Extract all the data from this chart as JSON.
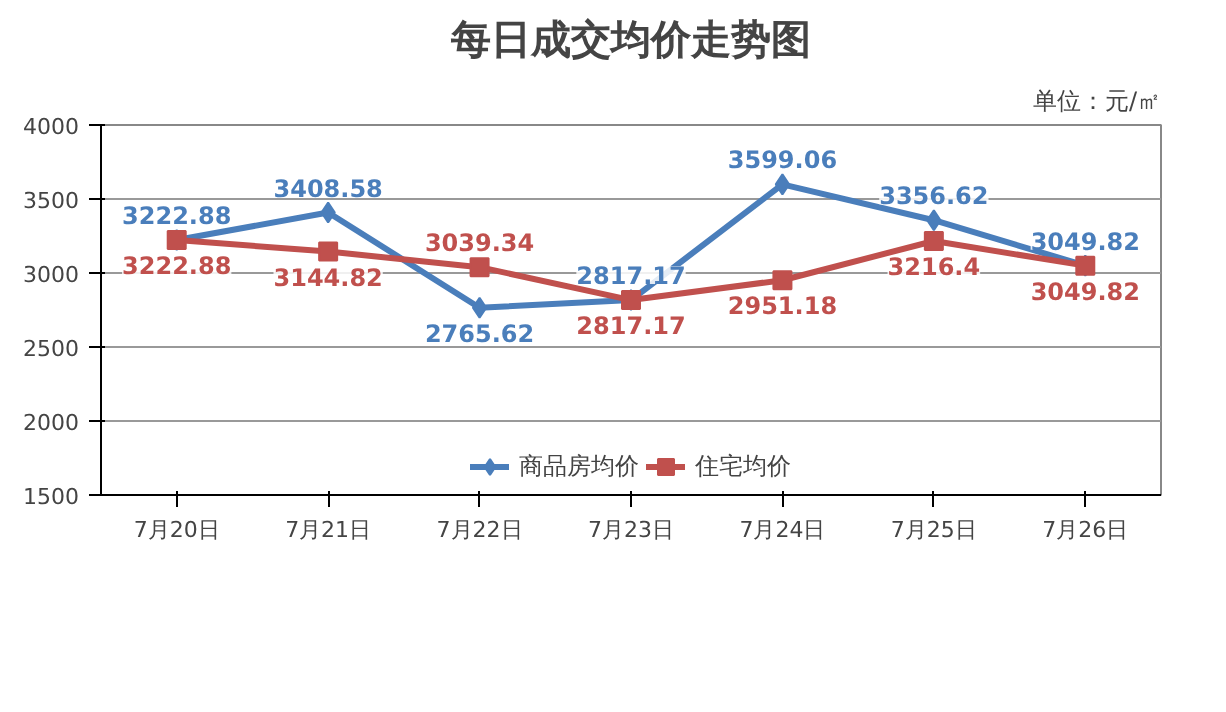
{
  "chart_data": {
    "type": "line",
    "title": "每日成交均价走势图",
    "annotations": [
      "单位：元/㎡"
    ],
    "categories": [
      "7月20日",
      "7月21日",
      "7月22日",
      "7月23日",
      "7月24日",
      "7月25日",
      "7月26日"
    ],
    "series": [
      {
        "name": "商品房均价",
        "color": "#4a7ebb",
        "marker": "diamond",
        "values": [
          3222.88,
          3408.58,
          2765.62,
          2817.17,
          3599.06,
          3356.62,
          3049.82
        ]
      },
      {
        "name": "住宅均价",
        "color": "#c0504d",
        "marker": "square",
        "values": [
          3222.88,
          3144.82,
          3039.34,
          2817.17,
          2951.18,
          3216.4,
          3049.82
        ]
      }
    ],
    "ylim": [
      1500,
      4000
    ],
    "yticks": [
      1500,
      2000,
      2500,
      3000,
      3500,
      4000
    ],
    "grid": "y",
    "legend": "bottom",
    "data_labels": true
  }
}
